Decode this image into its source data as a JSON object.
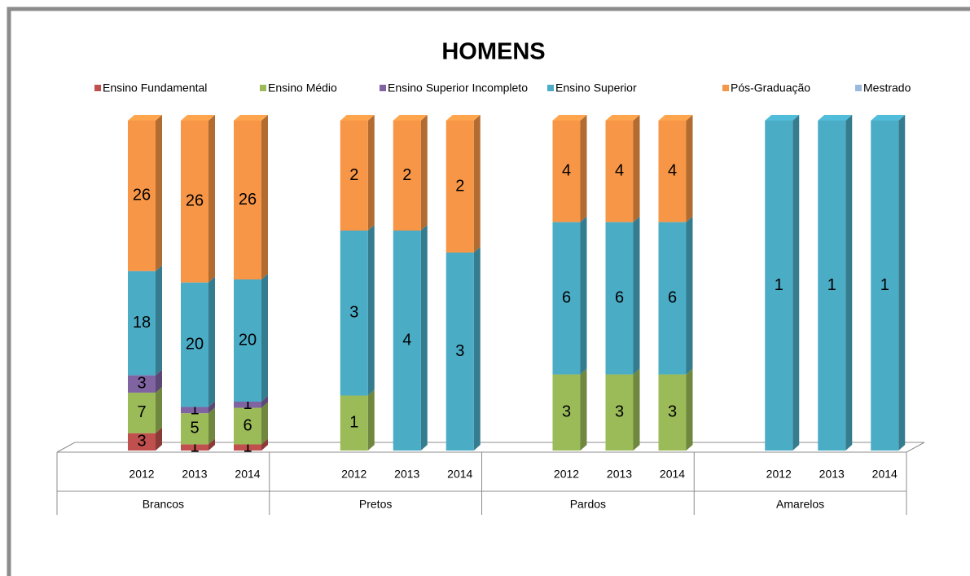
{
  "chart_data": {
    "type": "bar",
    "stacked": "percent",
    "title": "HOMENS",
    "groups": [
      "Brancos",
      "Pretos",
      "Pardos",
      "Amarelos"
    ],
    "categories": [
      "2012",
      "2013",
      "2014",
      "2012",
      "2013",
      "2014",
      "2012",
      "2013",
      "2014",
      "2012",
      "2013",
      "2014"
    ],
    "series": [
      {
        "name": "Ensino Fundamental",
        "color": "#c0504d",
        "values": [
          3,
          1,
          1,
          null,
          null,
          null,
          null,
          null,
          null,
          null,
          null,
          null
        ]
      },
      {
        "name": "Ensino Médio",
        "color": "#9bbb59",
        "values": [
          7,
          5,
          6,
          1,
          null,
          null,
          3,
          3,
          3,
          null,
          null,
          null
        ]
      },
      {
        "name": "Ensino Superior Incompleto",
        "color": "#8064a2",
        "values": [
          3,
          1,
          1,
          null,
          null,
          null,
          null,
          null,
          null,
          null,
          null,
          null
        ]
      },
      {
        "name": "Ensino Superior",
        "color": "#4bacc6",
        "values": [
          18,
          20,
          20,
          3,
          4,
          3,
          6,
          6,
          6,
          1,
          1,
          1
        ]
      },
      {
        "name": "Pós-Graduação",
        "color": "#f79646",
        "values": [
          26,
          26,
          26,
          2,
          2,
          2,
          4,
          4,
          4,
          null,
          null,
          null
        ]
      },
      {
        "name": "Mestrado",
        "color": "#9db8dd",
        "values": [
          null,
          null,
          null,
          null,
          null,
          null,
          null,
          null,
          null,
          null,
          null,
          null
        ]
      }
    ],
    "legend": "top"
  }
}
